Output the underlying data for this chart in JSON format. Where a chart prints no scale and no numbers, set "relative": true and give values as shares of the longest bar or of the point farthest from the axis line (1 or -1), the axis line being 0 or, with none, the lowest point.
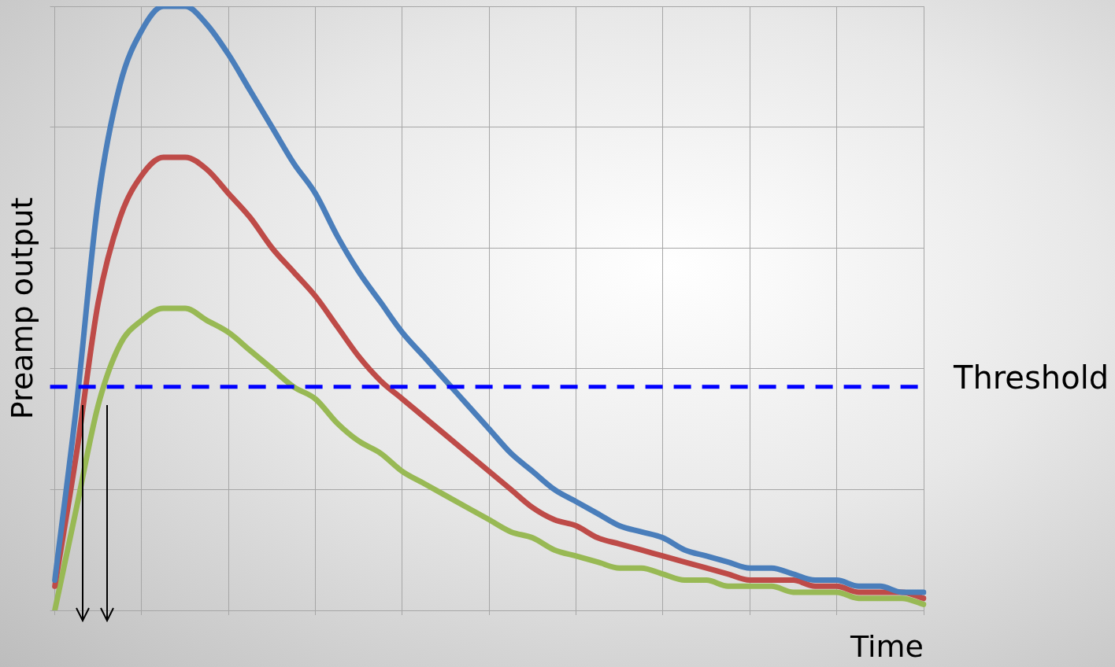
{
  "chart_data": {
    "type": "line",
    "xlabel": "Time",
    "ylabel": "Preamp output",
    "relative": true,
    "grid": true,
    "legend": false,
    "marker": "none",
    "line_style": "solid",
    "categories": [
      null,
      null,
      null,
      null,
      null,
      null,
      null,
      null,
      null,
      null,
      null,
      null,
      null,
      null,
      null,
      null,
      null,
      null,
      null,
      null,
      null,
      null,
      null,
      null,
      null,
      null,
      null,
      null,
      null,
      null,
      null,
      null,
      null,
      null,
      null,
      null,
      null,
      null,
      null,
      null,
      null
    ],
    "series": [
      {
        "color": "#4a7ebb",
        "values": [
          0.05,
          0.34,
          0.68,
          0.87,
          0.96,
          1,
          1,
          0.97,
          0.92,
          0.86,
          0.8,
          0.74,
          0.69,
          0.62,
          0.56,
          0.51,
          0.46,
          0.42,
          0.38,
          0.34,
          0.3,
          0.26,
          0.23,
          0.2,
          0.18,
          0.16,
          0.14,
          0.13,
          0.12,
          0.1,
          0.09,
          0.08,
          0.07,
          0.07,
          0.06,
          0.05,
          0.05,
          0.04,
          0.04,
          0.03,
          0.03
        ]
      },
      {
        "color": "#be4b48",
        "values": [
          0.04,
          0.26,
          0.51,
          0.65,
          0.72,
          0.75,
          0.75,
          0.73,
          0.69,
          0.65,
          0.6,
          0.56,
          0.52,
          0.47,
          0.42,
          0.38,
          0.35,
          0.32,
          0.29,
          0.26,
          0.23,
          0.2,
          0.17,
          0.15,
          0.14,
          0.12,
          0.11,
          0.1,
          0.09,
          0.08,
          0.07,
          0.06,
          0.05,
          0.05,
          0.05,
          0.04,
          0.04,
          0.03,
          0.03,
          0.03,
          0.02
        ]
      },
      {
        "color": "#98b954",
        "values": [
          0,
          0.17,
          0.34,
          0.44,
          0.48,
          0.5,
          0.5,
          0.48,
          0.46,
          0.43,
          0.4,
          0.37,
          0.35,
          0.31,
          0.28,
          0.26,
          0.23,
          0.21,
          0.19,
          0.17,
          0.15,
          0.13,
          0.12,
          0.1,
          0.09,
          0.08,
          0.07,
          0.07,
          0.06,
          0.05,
          0.05,
          0.04,
          0.04,
          0.04,
          0.03,
          0.03,
          0.03,
          0.02,
          0.02,
          0.02,
          0.01
        ]
      }
    ],
    "ref_lines": [
      {
        "axis": "y",
        "value": 0.37,
        "label": "Threshold",
        "color": "#0000ff",
        "line_style": "dashed"
      }
    ]
  }
}
